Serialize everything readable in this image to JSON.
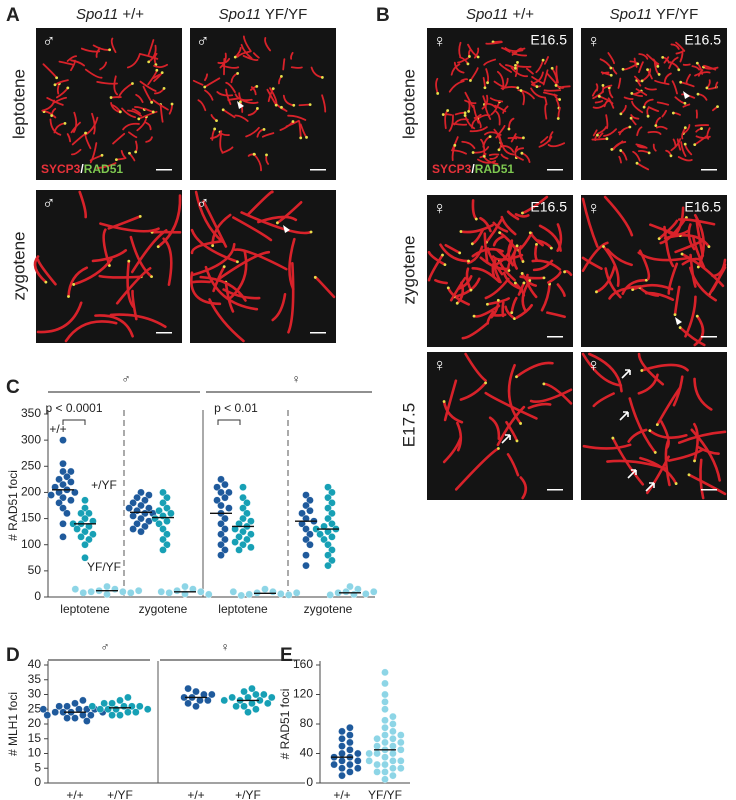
{
  "panel_labels": [
    "A",
    "B",
    "C",
    "D",
    "E"
  ],
  "panel_a": {
    "gene": "Spo11",
    "genotypes": [
      "+/+",
      "YF/YF"
    ],
    "rows": [
      "leptotene",
      "zygotene"
    ],
    "sex": "♂",
    "stain": [
      "SYCP3",
      "/",
      "RAD51"
    ]
  },
  "panel_b": {
    "gene": "Spo11",
    "genotypes": [
      "+/+",
      "YF/YF"
    ],
    "rows": [
      "leptotene",
      "zygotene",
      "E17.5"
    ],
    "sex": "♀",
    "stage": "E16.5",
    "stain": [
      "SYCP3",
      "/",
      "RAD51"
    ]
  },
  "chart_data": [
    {
      "type": "dot",
      "ylabel": "# RAD51 foci",
      "categories": [
        "leptotene",
        "zygotene",
        "leptotene",
        "zygotene"
      ],
      "groups": [
        "♂",
        "♀"
      ],
      "ylim": [
        0,
        350
      ],
      "yticks": [
        0,
        50,
        100,
        150,
        200,
        250,
        300,
        350
      ],
      "annotations": [
        "p < 0.0001",
        "p < 0.01"
      ],
      "series": [
        {
          "name": "+/+",
          "color": "#1f5a9c",
          "values": [
            [
              300,
              255,
              240,
              240,
              230,
              225,
              220,
              215,
              210,
              205,
              200,
              200,
              195,
              190,
              185,
              180,
              170,
              160,
              140,
              115
            ],
            [
              200,
              195,
              190,
              185,
              180,
              175,
              170,
              170,
              165,
              160,
              160,
              155,
              150,
              145,
              140,
              135,
              130,
              125
            ],
            [
              225,
              215,
              210,
              200,
              200,
              190,
              185,
              175,
              170,
              160,
              150,
              140,
              130,
              120,
              110,
              100,
              90,
              80
            ],
            [
              195,
              185,
              175,
              165,
              160,
              150,
              145,
              140,
              130,
              120,
              110,
              100,
              80,
              60
            ]
          ],
          "means": [
            205,
            162,
            160,
            145
          ]
        },
        {
          "name": "+/YF",
          "color": "#17a0b5",
          "values": [
            [
              185,
              170,
              160,
              160,
              150,
              145,
              140,
              140,
              135,
              130,
              125,
              120,
              115,
              110,
              100,
              75
            ],
            [
              200,
              190,
              180,
              170,
              165,
              160,
              155,
              150,
              145,
              140,
              130,
              120,
              110,
              100,
              90
            ],
            [
              210,
              190,
              180,
              170,
              160,
              150,
              145,
              140,
              135,
              130,
              125,
              120,
              115,
              110,
              105,
              100,
              95,
              90
            ],
            [
              210,
              200,
              190,
              180,
              170,
              160,
              150,
              140,
              135,
              130,
              130,
              125,
              120,
              115,
              110,
              100,
              90,
              80,
              70,
              60
            ]
          ],
          "means": [
            140,
            152,
            135,
            130
          ]
        },
        {
          "name": "YF/YF",
          "color": "#8dd5e6",
          "values": [
            [
              20,
              15,
              12,
              10,
              10,
              8,
              8,
              5,
              12,
              15
            ],
            [
              20,
              15,
              12,
              10,
              8,
              6,
              5,
              10
            ],
            [
              15,
              10,
              8,
              6,
              5,
              4,
              3,
              8,
              10
            ],
            [
              20,
              15,
              10,
              8,
              6,
              5,
              4,
              10
            ]
          ],
          "means": [
            12,
            10,
            7,
            8
          ]
        }
      ]
    },
    {
      "type": "dot",
      "ylabel": "# MLH1 foci",
      "categories": [
        "+/+",
        "+/YF",
        "+/+",
        "+/YF"
      ],
      "groups": [
        "♂",
        "♀"
      ],
      "ylim": [
        0,
        40
      ],
      "yticks": [
        0,
        5,
        10,
        15,
        20,
        25,
        30,
        35,
        40
      ],
      "series": [
        {
          "color": "#1f5a9c",
          "values": [
            [
              22,
              23,
              24,
              24,
              25,
              25,
              26,
              23,
              22,
              27,
              24,
              25,
              26,
              21,
              28,
              24,
              23,
              25
            ],
            null,
            [
              26,
              28,
              29,
              30,
              31,
              29,
              28,
              30,
              27,
              32
            ],
            null
          ],
          "means": [
            24,
            null,
            29,
            null
          ]
        },
        {
          "color": "#17a0b5",
          "values": [
            null,
            [
              23,
              24,
              25,
              25,
              26,
              26,
              27,
              27,
              28,
              24,
              25,
              26,
              23,
              29,
              25,
              26
            ],
            null,
            [
              24,
              25,
              26,
              27,
              28,
              28,
              29,
              29,
              30,
              30,
              31,
              27,
              26,
              28,
              32,
              29
            ]
          ],
          "means": [
            null,
            25.5,
            null,
            28
          ]
        }
      ]
    },
    {
      "type": "dot",
      "ylabel": "# RAD51 foci",
      "categories": [
        "+/+",
        "YF/YF"
      ],
      "ylim": [
        0,
        160
      ],
      "yticks": [
        0,
        40,
        80,
        120,
        160
      ],
      "series": [
        {
          "color": "#1f5a9c",
          "values": [
            [
              10,
              15,
              20,
              25,
              25,
              30,
              35,
              35,
              40,
              45,
              50,
              55,
              60,
              65,
              70,
              75,
              30,
              40,
              20
            ],
            null
          ],
          "means": [
            35,
            null
          ]
        },
        {
          "color": "#8dd5e6",
          "values": [
            null,
            [
              5,
              10,
              15,
              15,
              20,
              25,
              25,
              30,
              30,
              35,
              40,
              40,
              45,
              45,
              50,
              55,
              60,
              65,
              70,
              75,
              80,
              85,
              90,
              100,
              110,
              120,
              135,
              150,
              60,
              50,
              40,
              30,
              20,
              55,
              65
            ]
          ],
          "means": [
            null,
            45
          ]
        }
      ]
    }
  ]
}
